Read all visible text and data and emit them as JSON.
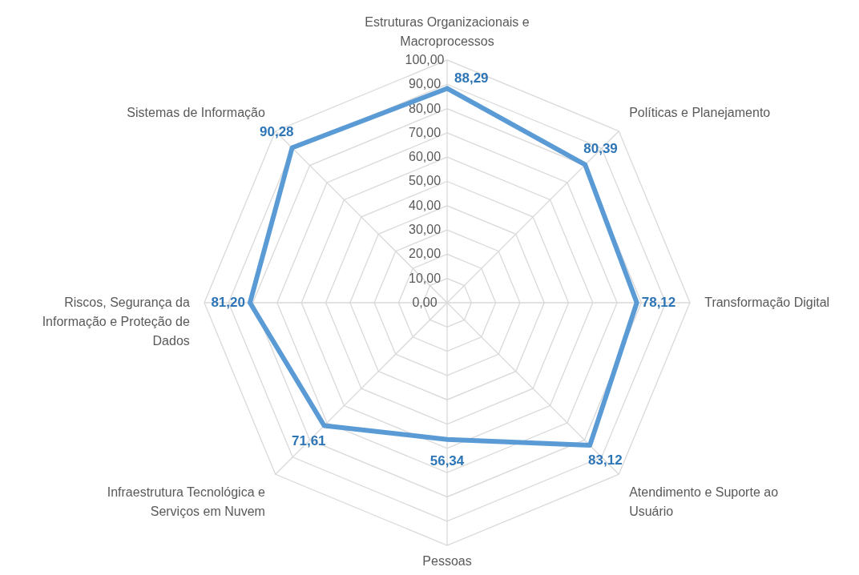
{
  "chart_data": {
    "type": "radar",
    "categories": [
      "Estruturas Organizacionais e Macroprocessos",
      "Políticas e Planejamento",
      "Transformação Digital",
      "Atendimento e Suporte ao Usuário",
      "Pessoas",
      "Infraestrutura Tecnológica e Serviços em Nuvem",
      "Riscos, Segurança da Informação e Proteção de Dados",
      "Sistemas de Informação"
    ],
    "series": [
      {
        "color": "#5b9bd5",
        "values": [
          88.29,
          80.39,
          78.12,
          83.12,
          56.34,
          71.61,
          81.2,
          90.28
        ],
        "value_labels": [
          "88,29",
          "80,39",
          "78,12",
          "83,12",
          "56,34",
          "71,61",
          "81,20",
          "90,28"
        ]
      }
    ],
    "ylim": [
      0,
      100
    ],
    "yticks": [
      {
        "value": 0,
        "label": "0,00"
      },
      {
        "value": 10,
        "label": "10,00"
      },
      {
        "value": 20,
        "label": "20,00"
      },
      {
        "value": 30,
        "label": "30,00"
      },
      {
        "value": 40,
        "label": "40,00"
      },
      {
        "value": 50,
        "label": "50,00"
      },
      {
        "value": 60,
        "label": "60,00"
      },
      {
        "value": 70,
        "label": "70,00"
      },
      {
        "value": 80,
        "label": "80,00"
      },
      {
        "value": 90,
        "label": "90,00"
      },
      {
        "value": 100,
        "label": "100,00"
      }
    ],
    "grid": true
  }
}
